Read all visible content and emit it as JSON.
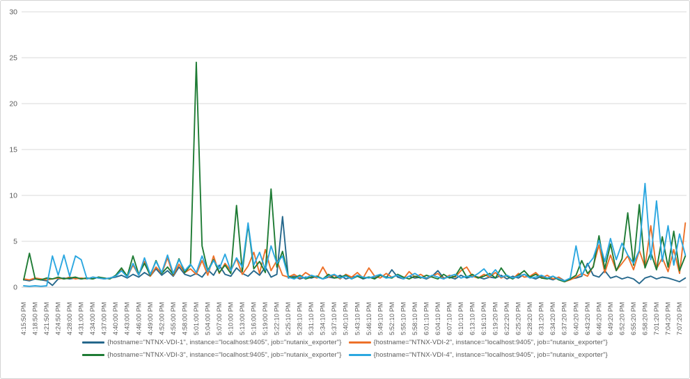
{
  "chart_data": {
    "type": "line",
    "title": "",
    "xlabel": "",
    "ylabel": "",
    "ylim": [
      0,
      30
    ],
    "y_ticks": [
      0,
      5,
      10,
      15,
      20,
      25,
      30
    ],
    "grid": true,
    "legend_position": "bottom",
    "samples_per_tick": 2,
    "x_tick_labels": [
      "4:15:50 PM",
      "4:18:50 PM",
      "4:21:50 PM",
      "4:24:50 PM",
      "4:28:00 PM",
      "4:31:00 PM",
      "4:34:00 PM",
      "4:37:00 PM",
      "4:40:00 PM",
      "4:43:00 PM",
      "4:46:00 PM",
      "4:49:00 PM",
      "4:52:00 PM",
      "4:55:00 PM",
      "4:58:00 PM",
      "5:01:00 PM",
      "5:04:00 PM",
      "5:07:00 PM",
      "5:10:00 PM",
      "5:13:00 PM",
      "5:16:00 PM",
      "5:19:00 PM",
      "5:22:10 PM",
      "5:25:10 PM",
      "5:28:10 PM",
      "5:31:10 PM",
      "5:34:10 PM",
      "5:37:10 PM",
      "5:40:10 PM",
      "5:43:10 PM",
      "5:46:10 PM",
      "5:49:10 PM",
      "5:52:10 PM",
      "5:55:10 PM",
      "5:58:10 PM",
      "6:01:10 PM",
      "6:04:10 PM",
      "6:07:10 PM",
      "6:10:10 PM",
      "6:13:10 PM",
      "6:16:10 PM",
      "6:19:20 PM",
      "6:22:20 PM",
      "6:25:20 PM",
      "6:28:20 PM",
      "6:31:20 PM",
      "6:34:20 PM",
      "6:37:20 PM",
      "6:40:20 PM",
      "6:43:20 PM",
      "6:46:20 PM",
      "6:49:20 PM",
      "6:52:20 PM",
      "6:55:20 PM",
      "6:58:20 PM",
      "7:01:20 PM",
      "7:04:20 PM",
      "7:07:20 PM"
    ],
    "series": [
      {
        "name": "{hostname=\"NTNX-VDI-1\", instance=\"localhost:9405\", job=\"nutanix_exporter\"}",
        "color": "#26688C",
        "values": [
          0.8,
          0.7,
          0.9,
          0.8,
          0.7,
          0.2,
          0.9,
          1.0,
          0.9,
          1.0,
          0.9,
          1.0,
          0.9,
          1.1,
          0.9,
          1.0,
          1.1,
          1.3,
          1.0,
          1.4,
          1.1,
          1.6,
          1.2,
          2.0,
          1.3,
          1.8,
          1.2,
          2.2,
          1.4,
          1.2,
          1.5,
          1.1,
          1.9,
          1.3,
          2.4,
          1.4,
          1.2,
          2.1,
          1.5,
          1.2,
          1.8,
          1.3,
          2.2,
          1.1,
          1.4,
          7.7,
          1.0,
          1.2,
          0.9,
          1.1,
          1.0,
          1.2,
          0.9,
          1.1,
          1.0,
          1.3,
          0.9,
          1.1,
          1.2,
          0.9,
          1.1,
          1.0,
          1.3,
          1.0,
          1.9,
          1.1,
          0.9,
          1.2,
          1.0,
          1.1,
          0.9,
          1.2,
          1.8,
          1.0,
          1.1,
          0.9,
          1.3,
          1.0,
          1.2,
          1.1,
          0.9,
          1.1,
          1.0,
          1.3,
          0.9,
          1.2,
          1.0,
          1.4,
          1.1,
          0.9,
          1.2,
          1.0,
          0.8,
          1.1,
          0.7,
          0.9,
          1.0,
          1.2,
          2.6,
          1.3,
          1.1,
          1.8,
          1.0,
          1.2,
          0.9,
          1.1,
          0.9,
          0.4,
          1.0,
          1.2,
          0.9,
          1.1,
          1.0,
          0.8,
          0.6,
          1.0
        ]
      },
      {
        "name": "{hostname=\"NTNX-VDI-2\", instance=\"localhost:9405\", job=\"nutanix_exporter\"}",
        "color": "#ED7129",
        "values": [
          0.9,
          0.8,
          1.0,
          0.9,
          0.8,
          0.9,
          1.0,
          0.9,
          1.1,
          0.9,
          1.0,
          0.9,
          1.1,
          1.0,
          0.9,
          1.0,
          1.2,
          1.9,
          1.1,
          2.4,
          1.3,
          2.8,
          1.2,
          2.2,
          1.5,
          3.2,
          1.3,
          2.5,
          1.6,
          2.0,
          1.4,
          2.9,
          1.3,
          3.4,
          1.5,
          2.6,
          1.8,
          3.1,
          1.4,
          2.3,
          3.8,
          1.5,
          4.1,
          1.8,
          2.9,
          1.3,
          1.1,
          1.4,
          1.0,
          1.6,
          1.2,
          1.0,
          2.2,
          1.1,
          1.3,
          0.9,
          1.4,
          1.1,
          1.6,
          1.0,
          2.1,
          1.2,
          1.0,
          1.5,
          1.1,
          1.3,
          0.9,
          1.7,
          1.1,
          1.4,
          1.0,
          1.2,
          1.5,
          0.9,
          1.3,
          1.1,
          1.8,
          2.2,
          1.2,
          1.0,
          1.4,
          1.1,
          1.6,
          1.0,
          1.3,
          0.9,
          1.5,
          1.1,
          1.2,
          1.6,
          1.0,
          1.3,
          0.9,
          1.1,
          0.6,
          0.8,
          1.1,
          1.5,
          1.2,
          2.3,
          4.6,
          1.6,
          3.5,
          1.8,
          2.6,
          3.4,
          1.9,
          4.0,
          2.2,
          6.7,
          2.0,
          3.2,
          1.7,
          4.1,
          1.5,
          7.0
        ]
      },
      {
        "name": "{hostname=\"NTNX-VDI-3\", instance=\"localhost:9405\", job=\"nutanix_exporter\"}",
        "color": "#1E7B34",
        "values": [
          0.8,
          3.7,
          0.9,
          0.8,
          1.0,
          0.9,
          1.1,
          0.9,
          1.0,
          1.1,
          0.9,
          1.0,
          0.9,
          1.1,
          1.0,
          0.9,
          1.3,
          2.1,
          1.2,
          3.4,
          1.4,
          2.6,
          1.3,
          2.9,
          1.5,
          2.2,
          1.4,
          3.1,
          1.6,
          2.4,
          24.5,
          4.5,
          1.8,
          3.0,
          1.6,
          2.4,
          1.5,
          8.9,
          1.7,
          6.8,
          2.0,
          2.8,
          1.6,
          10.7,
          2.2,
          3.9,
          1.2,
          1.0,
          1.3,
          0.9,
          1.1,
          1.2,
          0.9,
          1.4,
          1.0,
          1.1,
          1.3,
          0.9,
          1.2,
          1.0,
          1.1,
          0.9,
          1.3,
          1.1,
          1.0,
          1.4,
          1.1,
          0.9,
          1.2,
          1.0,
          1.3,
          1.1,
          0.9,
          1.4,
          1.0,
          1.2,
          2.2,
          1.1,
          1.4,
          1.0,
          1.2,
          1.5,
          1.0,
          2.1,
          1.2,
          0.9,
          1.3,
          1.8,
          1.1,
          1.4,
          1.0,
          0.9,
          1.2,
          0.8,
          0.6,
          0.9,
          1.3,
          2.9,
          1.5,
          2.2,
          5.6,
          2.0,
          4.7,
          1.8,
          3.1,
          8.1,
          2.4,
          9.0,
          2.1,
          3.8,
          1.9,
          5.5,
          2.2,
          6.1,
          1.8,
          3.4
        ]
      },
      {
        "name": "{hostname=\"NTNX-VDI-4\", instance=\"localhost:9405\", job=\"nutanix_exporter\"}",
        "color": "#2BA7E0",
        "values": [
          0.15,
          0.1,
          0.15,
          0.1,
          0.15,
          3.4,
          1.3,
          3.5,
          1.2,
          3.4,
          3.0,
          0.9,
          1.1,
          1.0,
          0.9,
          1.0,
          1.2,
          1.8,
          1.1,
          2.6,
          1.3,
          3.2,
          1.4,
          2.8,
          1.6,
          3.5,
          1.5,
          3.0,
          1.8,
          2.5,
          1.6,
          3.4,
          1.7,
          2.9,
          2.0,
          3.6,
          1.8,
          3.2,
          2.2,
          7.0,
          2.4,
          3.8,
          1.9,
          4.5,
          2.6,
          3.4,
          1.1,
          0.9,
          1.2,
          1.0,
          1.3,
          1.1,
          0.9,
          1.2,
          1.4,
          1.0,
          1.2,
          0.9,
          1.3,
          1.1,
          1.0,
          1.2,
          1.4,
          1.0,
          1.1,
          1.3,
          0.9,
          1.2,
          1.5,
          1.1,
          1.0,
          1.3,
          1.1,
          0.9,
          1.2,
          1.4,
          1.0,
          1.2,
          1.1,
          1.5,
          2.0,
          1.2,
          1.9,
          1.1,
          1.3,
          1.0,
          1.2,
          1.4,
          1.0,
          1.1,
          1.3,
          1.0,
          1.2,
          0.9,
          0.7,
          1.0,
          4.5,
          1.3,
          2.4,
          3.2,
          5.1,
          2.8,
          5.3,
          3.0,
          4.8,
          3.5,
          2.6,
          4.0,
          11.3,
          3.0,
          9.4,
          2.8,
          6.7,
          2.4,
          5.8,
          3.5
        ]
      }
    ]
  }
}
